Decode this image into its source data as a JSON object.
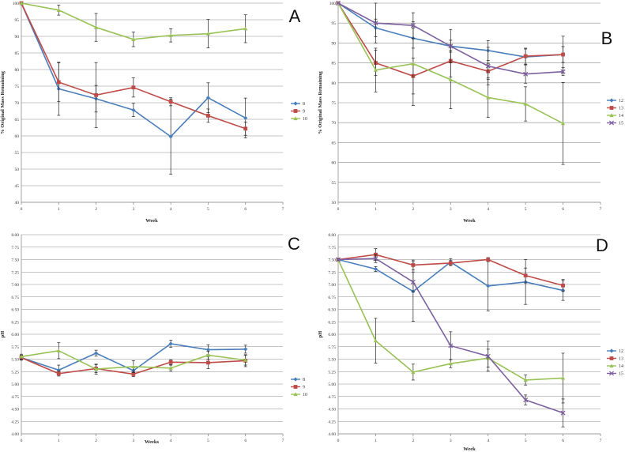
{
  "chart_data": [
    {
      "panel": "A",
      "type": "line",
      "panel_letter": "A",
      "xlabel": "Week",
      "ylabel": "% Original Mass Remaining",
      "xlim": [
        0,
        7
      ],
      "ylim": [
        40,
        100
      ],
      "xticks": [
        "0",
        "1",
        "2",
        "3",
        "4",
        "5",
        "6",
        "7"
      ],
      "yticks": [
        "40",
        "45",
        "50",
        "55",
        "60",
        "65",
        "70",
        "75",
        "80",
        "85",
        "90",
        "95",
        "100"
      ],
      "x": [
        0,
        1,
        2,
        3,
        4,
        5,
        6
      ],
      "series": [
        {
          "name": "8",
          "color": "#4a7ebb",
          "marker": "diamond",
          "values": [
            100,
            74.2,
            71.2,
            67.8,
            59.8,
            71.5,
            65.4
          ],
          "errors": [
            0,
            8,
            4,
            2,
            11.3,
            4.5,
            6
          ]
        },
        {
          "name": "9",
          "color": "#be4b48",
          "marker": "square",
          "values": [
            100,
            76.2,
            72.3,
            74.6,
            70.3,
            66.1,
            62.2
          ],
          "errors": [
            0,
            5.8,
            9.8,
            2.9,
            1.2,
            2,
            2
          ]
        },
        {
          "name": "10",
          "color": "#98c255",
          "marker": "triangle",
          "values": [
            100,
            97.9,
            92.7,
            89.1,
            90.3,
            90.8,
            92.3
          ],
          "errors": [
            0,
            1.5,
            4.2,
            2.2,
            2,
            4.3,
            4.2
          ]
        }
      ]
    },
    {
      "panel": "B",
      "type": "line",
      "panel_letter": "B",
      "xlabel": "Week",
      "ylabel": "% Original Mass Remaining",
      "xlim": [
        0,
        7
      ],
      "ylim": [
        50,
        100
      ],
      "xticks": [
        "0",
        "1",
        "2",
        "3",
        "4",
        "5",
        "6",
        "7"
      ],
      "yticks": [
        "50",
        "55",
        "60",
        "65",
        "70",
        "75",
        "80",
        "85",
        "90",
        "95",
        "100"
      ],
      "x": [
        0,
        1,
        2,
        3,
        4,
        5,
        6
      ],
      "series": [
        {
          "name": "12",
          "color": "#4a7ebb",
          "marker": "diamond",
          "values": [
            100,
            93.8,
            91.2,
            89.2,
            88.1,
            86.5,
            87.1
          ],
          "errors": [
            0,
            2.2,
            2.5,
            1.5,
            2.5,
            2,
            2
          ]
        },
        {
          "name": "13",
          "color": "#be4b48",
          "marker": "square",
          "values": [
            100,
            85,
            81.7,
            85.5,
            82.9,
            86.7,
            87.1
          ],
          "errors": [
            0,
            3.2,
            4.5,
            4,
            2,
            2,
            4.6
          ]
        },
        {
          "name": "14",
          "color": "#98c255",
          "marker": "triangle",
          "values": [
            100,
            83.2,
            84.8,
            80.8,
            76.3,
            74.7,
            69.8
          ],
          "errors": [
            0,
            5.5,
            10.5,
            7.3,
            5,
            4.3,
            10.3
          ]
        },
        {
          "name": "15",
          "color": "#7d60a0",
          "marker": "cross",
          "values": [
            100,
            95,
            94.4,
            89.2,
            84.2,
            82.2,
            82.8
          ],
          "errors": [
            0,
            5,
            3.2,
            4.2,
            4.7,
            2.3,
            1
          ]
        }
      ]
    },
    {
      "panel": "C",
      "type": "line",
      "panel_letter": "C",
      "xlabel": "Weeks",
      "ylabel": "pH",
      "xlim": [
        0,
        7
      ],
      "ylim": [
        4.0,
        8.0
      ],
      "xticks": [
        "0",
        "1",
        "2",
        "3",
        "4",
        "5",
        "6",
        "7"
      ],
      "yticks": [
        "4.00",
        "4.25",
        "4.50",
        "4.75",
        "5.00",
        "5.25",
        "5.50",
        "5.75",
        "6.00",
        "6.25",
        "6.50",
        "6.75",
        "7.00",
        "7.25",
        "7.50",
        "7.75",
        "8.00"
      ],
      "x": [
        0,
        1,
        2,
        3,
        4,
        5,
        6
      ],
      "series": [
        {
          "name": "8",
          "color": "#4a7ebb",
          "marker": "diamond",
          "values": [
            5.53,
            5.28,
            5.62,
            5.27,
            5.81,
            5.69,
            5.7
          ],
          "errors": [
            0.05,
            0.1,
            0.06,
            0.07,
            0.07,
            0.1,
            0.08
          ]
        },
        {
          "name": "9",
          "color": "#be4b48",
          "marker": "square",
          "values": [
            5.53,
            5.21,
            5.31,
            5.2,
            5.44,
            5.43,
            5.47
          ],
          "errors": [
            0.05,
            0.05,
            0.08,
            0.05,
            0.05,
            0.12,
            0.12
          ]
        },
        {
          "name": "10",
          "color": "#98c255",
          "marker": "triangle",
          "values": [
            5.55,
            5.67,
            5.3,
            5.35,
            5.32,
            5.58,
            5.48
          ],
          "errors": [
            0.05,
            0.16,
            0.1,
            0.12,
            0.06,
            0.08,
            0.1
          ]
        }
      ]
    },
    {
      "panel": "D",
      "type": "line",
      "panel_letter": "D",
      "xlabel": "Week",
      "ylabel": "pH",
      "xlim": [
        0,
        7
      ],
      "ylim": [
        4.0,
        8.0
      ],
      "xticks": [
        "0",
        "1",
        "2",
        "3",
        "4",
        "5",
        "6",
        "7"
      ],
      "yticks": [
        "4.00",
        "4.25",
        "4.50",
        "4.75",
        "5.00",
        "5.25",
        "5.50",
        "5.75",
        "6.00",
        "6.25",
        "6.50",
        "6.75",
        "7.00",
        "7.25",
        "7.50",
        "7.75",
        "8.00"
      ],
      "x": [
        0,
        1,
        2,
        3,
        4,
        5,
        6
      ],
      "series": [
        {
          "name": "12",
          "color": "#4a7ebb",
          "marker": "diamond",
          "values": [
            7.5,
            7.31,
            6.86,
            7.45,
            6.97,
            7.05,
            6.88
          ],
          "errors": [
            0.02,
            0.05,
            0.6,
            0.07,
            0.5,
            0.45,
            0.2
          ]
        },
        {
          "name": "13",
          "color": "#be4b48",
          "marker": "square",
          "values": [
            7.5,
            7.6,
            7.39,
            7.43,
            7.5,
            7.18,
            6.98
          ],
          "errors": [
            0.02,
            0.12,
            0.1,
            0.05,
            0.04,
            0.15,
            0.12
          ]
        },
        {
          "name": "14",
          "color": "#98c255",
          "marker": "triangle",
          "values": [
            7.5,
            5.87,
            5.24,
            5.41,
            5.52,
            5.08,
            5.12
          ],
          "errors": [
            0.02,
            0.45,
            0.16,
            0.08,
            0.18,
            0.1,
            0.5
          ]
        },
        {
          "name": "15",
          "color": "#7d60a0",
          "marker": "cross",
          "values": [
            7.5,
            7.52,
            7.05,
            5.77,
            5.56,
            4.68,
            4.42
          ],
          "errors": [
            0.02,
            0.08,
            0.2,
            0.28,
            0.3,
            0.1,
            0.28
          ]
        }
      ]
    }
  ]
}
